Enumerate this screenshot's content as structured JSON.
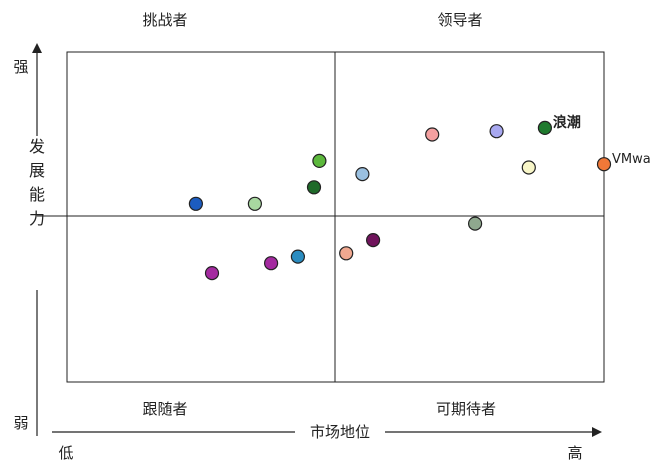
{
  "chart_data": {
    "type": "scatter",
    "title": "",
    "xlabel": "市场地位",
    "ylabel": "发展能力",
    "x_low": "低",
    "x_high": "高",
    "y_high": "强",
    "y_low": "弱",
    "xlim": [
      0,
      10
    ],
    "ylim": [
      0,
      10
    ],
    "grid": false,
    "quadrants": {
      "top_left": "挑战者",
      "top_right": "领导者",
      "bottom_left": "跟随者",
      "bottom_right": "可期待者"
    },
    "points": [
      {
        "x": 6.8,
        "y": 7.5,
        "label": "",
        "color": "#f4a0a0"
      },
      {
        "x": 8.0,
        "y": 7.6,
        "label": "",
        "color": "#a8a8f0"
      },
      {
        "x": 8.9,
        "y": 7.7,
        "label": "浪潮",
        "color": "#1f7a2e"
      },
      {
        "x": 10.0,
        "y": 6.6,
        "label": "VMware",
        "color": "#f07838"
      },
      {
        "x": 8.6,
        "y": 6.5,
        "label": "",
        "color": "#f8f6c8"
      },
      {
        "x": 4.7,
        "y": 6.7,
        "label": "",
        "color": "#5cb83c"
      },
      {
        "x": 5.5,
        "y": 6.3,
        "label": "",
        "color": "#9ac0e0"
      },
      {
        "x": 4.6,
        "y": 5.9,
        "label": "",
        "color": "#1f6a2a"
      },
      {
        "x": 2.4,
        "y": 5.4,
        "label": "",
        "color": "#1c5cc0"
      },
      {
        "x": 3.5,
        "y": 5.4,
        "label": "",
        "color": "#a8d8a0"
      },
      {
        "x": 7.6,
        "y": 4.8,
        "label": "",
        "color": "#8fa88e"
      },
      {
        "x": 5.7,
        "y": 4.3,
        "label": "",
        "color": "#70145c"
      },
      {
        "x": 5.2,
        "y": 3.9,
        "label": "",
        "color": "#f0a890"
      },
      {
        "x": 4.3,
        "y": 3.8,
        "label": "",
        "color": "#2a8cc0"
      },
      {
        "x": 3.8,
        "y": 3.6,
        "label": "",
        "color": "#a42aa0"
      },
      {
        "x": 2.7,
        "y": 3.3,
        "label": "",
        "color": "#a42aa0"
      }
    ]
  }
}
